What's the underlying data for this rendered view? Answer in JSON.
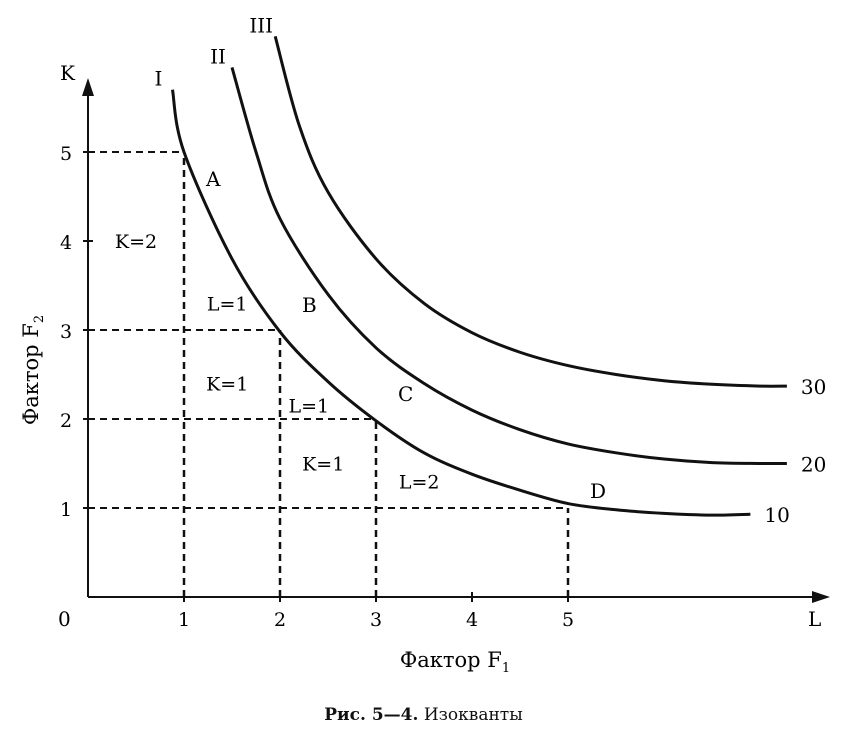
{
  "chart_data": {
    "type": "line",
    "x_axis_label": "L",
    "y_axis_label": "K",
    "x_title": "Фактор F",
    "x_title_sub": "1",
    "y_title": "Фактор F",
    "y_title_sub": "2",
    "origin_label": "0",
    "xlim": [
      0,
      7.8
    ],
    "ylim": [
      0,
      5.8
    ],
    "x_ticks": [
      1,
      2,
      3,
      4,
      5
    ],
    "y_ticks": [
      1,
      2,
      3,
      4,
      5
    ],
    "series": [
      {
        "name": "10",
        "roman": "I",
        "points": [
          [
            0.88,
            5.7
          ],
          [
            1,
            5
          ],
          [
            1.5,
            3.8
          ],
          [
            2,
            2.98
          ],
          [
            2.5,
            2.42
          ],
          [
            3,
            1.98
          ],
          [
            3.5,
            1.62
          ],
          [
            4,
            1.38
          ],
          [
            4.5,
            1.2
          ],
          [
            5,
            1.05
          ],
          [
            5.5,
            0.98
          ],
          [
            6,
            0.94
          ],
          [
            6.5,
            0.92
          ],
          [
            6.9,
            0.93
          ]
        ]
      },
      {
        "name": "20",
        "roman": "II",
        "points": [
          [
            1.5,
            5.95
          ],
          [
            1.75,
            5
          ],
          [
            2,
            4.25
          ],
          [
            2.5,
            3.4
          ],
          [
            3,
            2.8
          ],
          [
            3.5,
            2.4
          ],
          [
            4,
            2.1
          ],
          [
            4.5,
            1.88
          ],
          [
            5,
            1.72
          ],
          [
            5.5,
            1.62
          ],
          [
            6,
            1.55
          ],
          [
            6.5,
            1.51
          ],
          [
            7,
            1.5
          ],
          [
            7.28,
            1.5
          ]
        ]
      },
      {
        "name": "30",
        "roman": "III",
        "points": [
          [
            1.95,
            6.3
          ],
          [
            2.2,
            5.3
          ],
          [
            2.5,
            4.55
          ],
          [
            3,
            3.8
          ],
          [
            3.5,
            3.3
          ],
          [
            4,
            2.97
          ],
          [
            4.5,
            2.75
          ],
          [
            5,
            2.6
          ],
          [
            5.5,
            2.5
          ],
          [
            6,
            2.43
          ],
          [
            6.5,
            2.39
          ],
          [
            7,
            2.37
          ],
          [
            7.28,
            2.37
          ]
        ]
      }
    ],
    "points": [
      {
        "label": "A",
        "x": 1,
        "y": 5
      },
      {
        "label": "B",
        "x": 2,
        "y": 3
      },
      {
        "label": "C",
        "x": 3,
        "y": 2
      },
      {
        "label": "D",
        "x": 5,
        "y": 1
      }
    ],
    "step_labels": [
      {
        "text": "K=2",
        "x": 0.5,
        "y": 4
      },
      {
        "text": "L=1",
        "x": 1.45,
        "y": 3.3
      },
      {
        "text": "K=1",
        "x": 1.45,
        "y": 2.4
      },
      {
        "text": "L=1",
        "x": 2.3,
        "y": 2.15
      },
      {
        "text": "K=1",
        "x": 2.45,
        "y": 1.5
      },
      {
        "text": "L=2",
        "x": 3.45,
        "y": 1.3
      }
    ],
    "caption_bold": "Рис. 5—4.",
    "caption_text": "Изокванты"
  }
}
